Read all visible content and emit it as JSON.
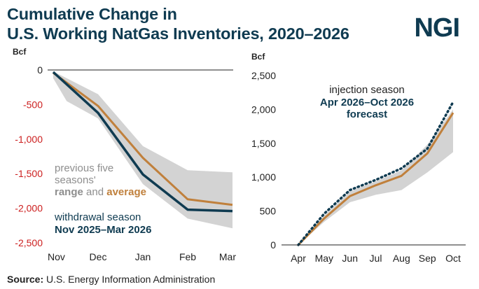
{
  "header": {
    "title_line1": "Cumulative Change in",
    "title_line2": "U.S. Working NatGas Inventories, 2020–2026",
    "logo": "NGI"
  },
  "footer": {
    "source_label": "Source:",
    "source_text": "U.S. Energy Information Administration"
  },
  "colors": {
    "title": "#0f3b51",
    "current_line": "#0f3b51",
    "average_line": "#c0803c",
    "range_band": "#d3d3d3",
    "negative_ticks": "#cc1f1f",
    "range_text": "#8e8e8e"
  },
  "chart_data": [
    {
      "type": "line",
      "ylabel": "Bcf",
      "categories": [
        "Nov",
        "Dec",
        "Jan",
        "Feb",
        "Mar"
      ],
      "ylim": [
        -2500,
        0
      ],
      "yticks": [
        0,
        -500,
        -1000,
        -1500,
        -2000,
        -2500
      ],
      "ytick_labels": [
        "0",
        "-500",
        "-1,000",
        "-1,500",
        "-2,000",
        "-2,500"
      ],
      "grid": false,
      "series": [
        {
          "role": "range_max",
          "x": [
            0,
            1,
            2,
            3,
            4
          ],
          "values": [
            -20,
            -350,
            -1100,
            -1450,
            -1480
          ]
        },
        {
          "role": "range_min",
          "x": [
            0,
            0.3,
            1,
            2,
            3,
            4
          ],
          "values": [
            -120,
            -450,
            -700,
            -1650,
            -2150,
            -2290
          ]
        },
        {
          "role": "average",
          "x": [
            0,
            1,
            2,
            3,
            4
          ],
          "values": [
            -40,
            -520,
            -1270,
            -1870,
            -1950
          ]
        },
        {
          "role": "current",
          "x": [
            0,
            1,
            2,
            3,
            4
          ],
          "values": [
            -30,
            -620,
            -1510,
            -2020,
            -2040
          ]
        }
      ],
      "annotations": {
        "range_line1": "previous five",
        "range_line2": "seasons'",
        "range_word": "range",
        "and_word": "and",
        "average_word": "average",
        "season_line1": "withdrawal season",
        "season_line2": "Nov 2025–Mar 2026"
      }
    },
    {
      "type": "line",
      "ylabel": "Bcf",
      "categories": [
        "Apr",
        "May",
        "Jun",
        "Jul",
        "Aug",
        "Sep",
        "Oct"
      ],
      "ylim": [
        0,
        2500
      ],
      "yticks": [
        0,
        500,
        1000,
        1500,
        2000,
        2500
      ],
      "ytick_labels": [
        "0",
        "500",
        "1,000",
        "1,500",
        "2,000",
        "2,500"
      ],
      "grid": false,
      "series": [
        {
          "role": "range_max",
          "x": [
            0,
            1,
            2,
            3,
            4,
            5,
            6
          ],
          "values": [
            0,
            430,
            790,
            940,
            1100,
            1480,
            2000
          ]
        },
        {
          "role": "range_min",
          "x": [
            0,
            1,
            2,
            3,
            4,
            5,
            6
          ],
          "values": [
            0,
            340,
            630,
            740,
            810,
            1070,
            1370
          ]
        },
        {
          "role": "average",
          "x": [
            0,
            1,
            2,
            3,
            4,
            5,
            6
          ],
          "values": [
            0,
            390,
            720,
            880,
            1020,
            1350,
            1950
          ]
        },
        {
          "role": "forecast",
          "x": [
            0,
            1,
            2,
            3,
            4,
            5,
            6
          ],
          "values": [
            0,
            460,
            810,
            960,
            1130,
            1420,
            2110
          ]
        }
      ],
      "annotations": {
        "line1": "injection season",
        "line2": "Apr 2026–Oct 2026",
        "line3": "forecast"
      }
    }
  ]
}
